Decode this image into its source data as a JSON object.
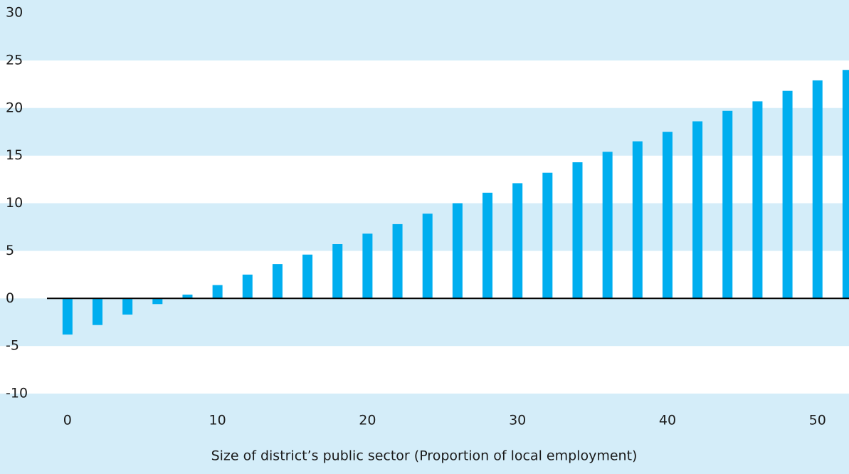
{
  "chart_data": {
    "type": "bar",
    "xlabel": "Size of district’s public sector (Proportion of local employment)",
    "x": [
      0,
      2,
      4,
      6,
      8,
      10,
      12,
      14,
      16,
      18,
      20,
      22,
      24,
      26,
      28,
      30,
      32,
      34,
      36,
      38,
      40,
      42,
      44,
      46,
      48,
      50,
      52
    ],
    "values": [
      -3.8,
      -2.8,
      -1.7,
      -0.6,
      0.4,
      1.4,
      2.5,
      3.6,
      4.6,
      5.7,
      6.8,
      7.8,
      8.9,
      10.0,
      11.1,
      12.1,
      13.2,
      14.3,
      15.4,
      16.5,
      17.5,
      18.6,
      19.7,
      20.7,
      21.8,
      22.9,
      24.0
    ],
    "color": "#00aeef",
    "xlim": [
      -4.5,
      52.1
    ],
    "xticks": [
      0,
      10,
      20,
      30,
      40,
      50
    ],
    "ylim": [
      -10,
      30
    ],
    "yticks": [
      -10,
      -5,
      0,
      5,
      10,
      15,
      20,
      25,
      30
    ],
    "band_colors": [
      "#ffffff",
      "#d4edf9"
    ]
  }
}
